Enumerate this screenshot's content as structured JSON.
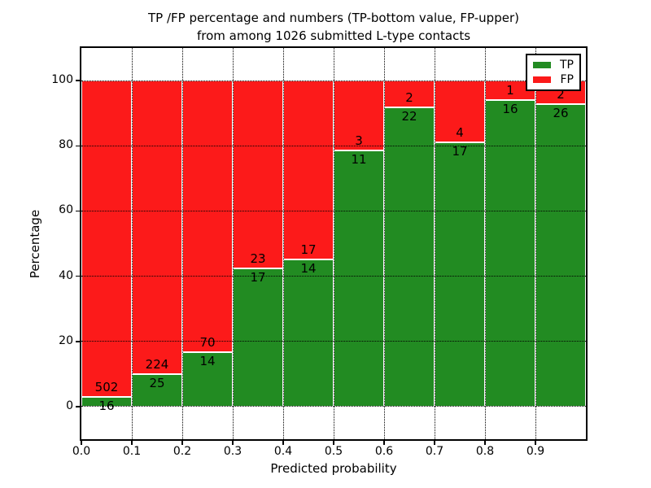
{
  "figure": {
    "title_line1": "TP /FP percentage and numbers (TP-bottom value, FP-upper)",
    "title_line2": "from among 1026 submitted L-type contacts",
    "total_submitted_contacts": 1026
  },
  "chart_data": {
    "type": "bar",
    "stacked": true,
    "normalized": "each bin stacked to 100%",
    "title": "TP /FP percentage and numbers (TP-bottom value, FP-upper) from among 1026 submitted L-type contacts",
    "xlabel": "Predicted probability",
    "ylabel": "Percentage",
    "bin_edges": [
      0.0,
      0.1,
      0.2,
      0.3,
      0.4,
      0.5,
      0.6,
      0.7,
      0.8,
      0.9,
      1.0
    ],
    "categories": [
      "0.0-0.1",
      "0.1-0.2",
      "0.2-0.3",
      "0.3-0.4",
      "0.4-0.5",
      "0.5-0.6",
      "0.6-0.7",
      "0.7-0.8",
      "0.8-0.9",
      "0.9-1.0"
    ],
    "series": [
      {
        "name": "TP",
        "color": "#228b22",
        "counts": [
          16,
          25,
          14,
          17,
          14,
          11,
          22,
          17,
          16,
          26
        ],
        "percent": [
          3.09,
          10.04,
          16.67,
          42.5,
          45.16,
          78.57,
          91.67,
          80.95,
          94.12,
          92.86
        ]
      },
      {
        "name": "FP",
        "color": "#fc1a1a",
        "counts": [
          502,
          224,
          70,
          23,
          17,
          3,
          2,
          4,
          1,
          2
        ],
        "percent": [
          96.91,
          89.96,
          83.33,
          57.5,
          54.84,
          21.43,
          8.33,
          19.05,
          5.88,
          7.14
        ]
      }
    ],
    "xlim": [
      0.0,
      1.0
    ],
    "ylim": [
      -10,
      110
    ],
    "xtick_labels": [
      "0.0",
      "0.1",
      "0.2",
      "0.3",
      "0.4",
      "0.5",
      "0.6",
      "0.7",
      "0.8",
      "0.9"
    ],
    "yticks": [
      0,
      20,
      40,
      60,
      80,
      100
    ],
    "grid": "black dotted, vertical at each 0.1 and horizontal at each y tick",
    "bar_edge_color": "#ffffff",
    "legend": {
      "position": "upper right",
      "entries": [
        "TP",
        "FP"
      ]
    }
  }
}
